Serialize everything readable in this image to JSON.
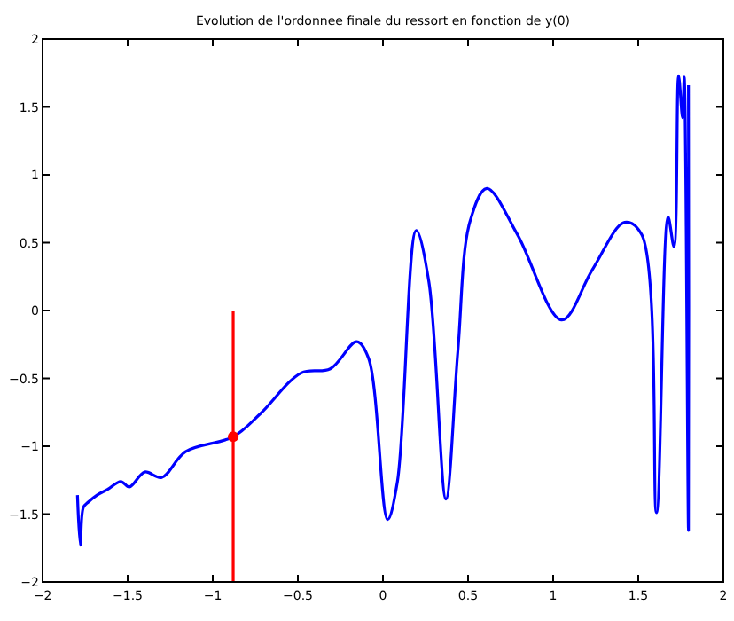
{
  "chart_data": {
    "type": "line",
    "title": "Evolution de l'ordonnee finale du ressort en fonction de y(0)",
    "xlim": [
      -2,
      2
    ],
    "ylim": [
      -2,
      2
    ],
    "xticks": [
      {
        "value": -2,
        "label": "−2"
      },
      {
        "value": -1.5,
        "label": "−1.5"
      },
      {
        "value": -1,
        "label": "−1"
      },
      {
        "value": -0.5,
        "label": "−0.5"
      },
      0,
      0.5,
      1,
      1.5,
      2
    ],
    "yticks": [
      {
        "value": -2,
        "label": "−2"
      },
      {
        "value": -1.5,
        "label": "−1.5"
      },
      {
        "value": -1,
        "label": "−1"
      },
      {
        "value": -0.5,
        "label": "−0.5"
      },
      0,
      0.5,
      1,
      1.5,
      2
    ],
    "grid": false,
    "series": [
      {
        "color": "#0000ff",
        "x": [
          -1.795,
          -1.778,
          -1.76,
          -1.73,
          -1.68,
          -1.62,
          -1.54,
          -1.49,
          -1.4,
          -1.3,
          -1.16,
          -0.88,
          -0.72,
          -0.48,
          -0.31,
          -0.154,
          -0.085,
          0.027,
          0.085,
          0.195,
          0.27,
          0.37,
          0.44,
          0.51,
          0.61,
          0.79,
          1.05,
          1.23,
          1.42,
          1.52,
          1.607,
          1.675,
          1.71,
          1.737,
          1.76,
          1.77,
          1.795,
          1.795
        ],
        "values": [
          -1.36,
          -1.73,
          -1.45,
          -1.41,
          -1.36,
          -1.32,
          -1.26,
          -1.3,
          -1.19,
          -1.23,
          -1.04,
          -0.93,
          -0.76,
          -0.46,
          -0.43,
          -0.23,
          -0.35,
          -1.54,
          -1.26,
          0.59,
          0.21,
          -1.39,
          -0.3,
          0.65,
          0.9,
          0.56,
          -0.07,
          0.3,
          0.65,
          0.56,
          -1.49,
          0.69,
          0.47,
          1.73,
          1.42,
          1.72,
          -1.62,
          1.66
        ]
      },
      {
        "color": "#ff0000",
        "x": [
          -0.88,
          -0.88
        ],
        "values": [
          -2,
          0
        ]
      },
      {
        "type": "scatter",
        "color": "#ff0000",
        "marker": "circle",
        "x": [
          -0.88
        ],
        "values": [
          -0.93
        ]
      }
    ]
  }
}
